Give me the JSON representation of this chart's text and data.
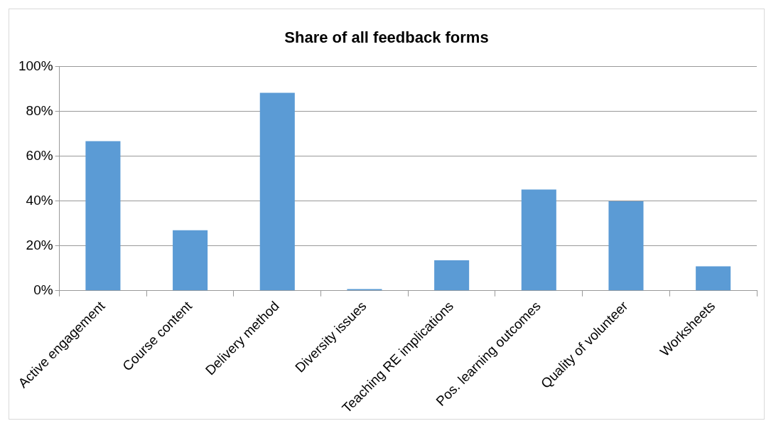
{
  "chart_data": {
    "type": "bar",
    "title": "Share of all feedback forms",
    "categories": [
      "Active engagement",
      "Course content",
      "Delivery method",
      "Diversity issues",
      "Teaching RE implications",
      "Pos. learning outcomes",
      "Quality of volunteer",
      "Worksheets"
    ],
    "values": [
      66.7,
      27,
      88.2,
      0.7,
      13.6,
      45.1,
      39.9,
      10.9
    ],
    "color": "#5b9bd5",
    "ylim": [
      0,
      100
    ],
    "yticks": [
      {
        "value": 0,
        "label": "0%"
      },
      {
        "value": 20,
        "label": "20%"
      },
      {
        "value": 40,
        "label": "40%"
      },
      {
        "value": 60,
        "label": "60%"
      },
      {
        "value": 80,
        "label": "80%"
      },
      {
        "value": 100,
        "label": "100%"
      }
    ],
    "grid": "y",
    "legend": false
  }
}
